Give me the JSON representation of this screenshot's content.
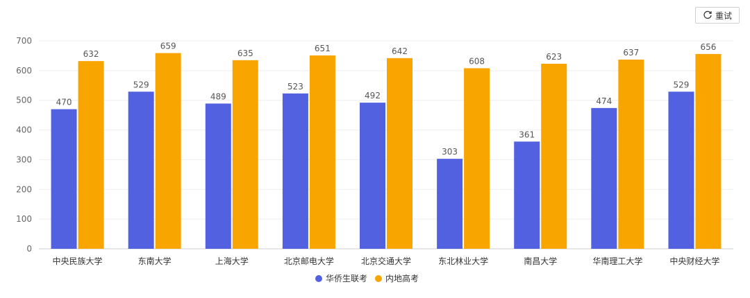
{
  "toolbar": {
    "reset_label": "重试",
    "reset_icon": "refresh-icon"
  },
  "chart_data": {
    "type": "bar",
    "categories": [
      "中央民族大学",
      "东南大学",
      "上海大学",
      "北京邮电大学",
      "北京交通大学",
      "东北林业大学",
      "南昌大学",
      "华南理工大学",
      "中央财经大学"
    ],
    "series": [
      {
        "name": "华侨生联考",
        "color": "#5161e0",
        "values": [
          470,
          529,
          489,
          523,
          492,
          303,
          361,
          474,
          529
        ]
      },
      {
        "name": "内地高考",
        "color": "#f8a500",
        "values": [
          632,
          659,
          635,
          651,
          642,
          608,
          623,
          637,
          656
        ]
      }
    ],
    "ylim": [
      0,
      700
    ],
    "yticks": [
      0,
      100,
      200,
      300,
      400,
      500,
      600,
      700
    ],
    "grid": true,
    "legend_position": "bottom"
  }
}
